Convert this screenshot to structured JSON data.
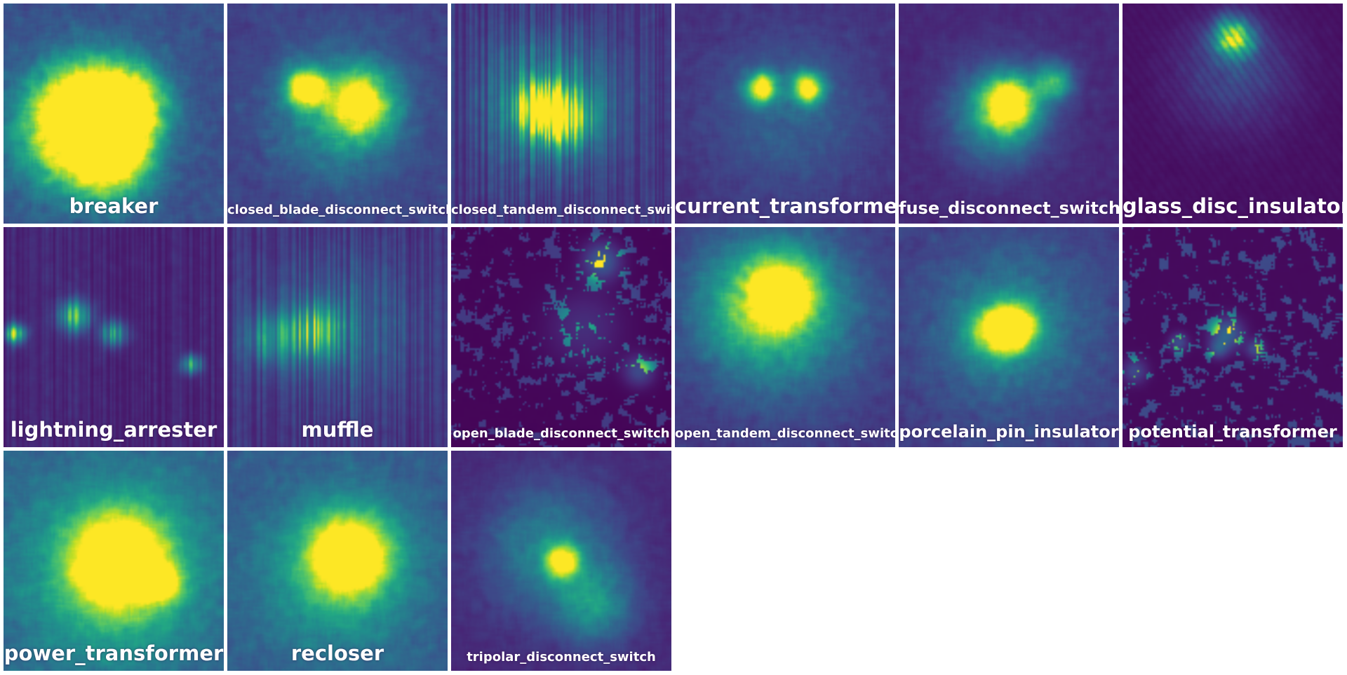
{
  "tiles": [
    {
      "label": "breaker",
      "size": "large",
      "style": "blob",
      "blobs": [
        [
          0.38,
          0.5,
          0.16,
          1.0
        ],
        [
          0.55,
          0.47,
          0.12,
          0.85
        ],
        [
          0.5,
          0.72,
          0.12,
          0.6
        ],
        [
          0.3,
          0.6,
          0.18,
          0.5
        ]
      ],
      "base": 0.25
    },
    {
      "label": "closed_blade_disconnect_switch",
      "size": "small",
      "style": "blob",
      "blobs": [
        [
          0.35,
          0.38,
          0.06,
          0.9
        ],
        [
          0.6,
          0.45,
          0.1,
          0.75
        ],
        [
          0.5,
          0.5,
          0.2,
          0.35
        ]
      ],
      "base": 0.2
    },
    {
      "label": "closed_tandem_disconnect_switch",
      "size": "small",
      "style": "vertical",
      "blobs": [
        [
          0.4,
          0.47,
          0.07,
          0.85
        ],
        [
          0.5,
          0.52,
          0.08,
          0.75
        ],
        [
          0.45,
          0.45,
          0.2,
          0.4
        ]
      ],
      "base": 0.18
    },
    {
      "label": "current_transformer",
      "size": "large",
      "style": "blob",
      "blobs": [
        [
          0.39,
          0.38,
          0.05,
          0.85
        ],
        [
          0.6,
          0.38,
          0.05,
          0.85
        ],
        [
          0.5,
          0.5,
          0.25,
          0.18
        ]
      ],
      "base": 0.14
    },
    {
      "label": "fuse_disconnect_switch",
      "size": "medium",
      "style": "blob",
      "blobs": [
        [
          0.5,
          0.45,
          0.08,
          0.85
        ],
        [
          0.45,
          0.5,
          0.15,
          0.45
        ],
        [
          0.7,
          0.35,
          0.06,
          0.5
        ]
      ],
      "base": 0.12
    },
    {
      "label": "glass_disc_insulator",
      "size": "large",
      "style": "streak",
      "blobs": [
        [
          0.5,
          0.15,
          0.06,
          0.85
        ],
        [
          0.5,
          0.3,
          0.18,
          0.2
        ]
      ],
      "base": 0.05
    },
    {
      "label": "lightning_arrester",
      "size": "large",
      "style": "vertical",
      "blobs": [
        [
          0.05,
          0.48,
          0.03,
          0.8
        ],
        [
          0.32,
          0.4,
          0.05,
          0.6
        ],
        [
          0.5,
          0.48,
          0.04,
          0.55
        ],
        [
          0.85,
          0.62,
          0.03,
          0.6
        ]
      ],
      "base": 0.12
    },
    {
      "label": "muffle",
      "size": "large",
      "style": "vertical",
      "blobs": [
        [
          0.4,
          0.47,
          0.08,
          0.55
        ],
        [
          0.2,
          0.5,
          0.08,
          0.35
        ],
        [
          0.5,
          0.45,
          0.25,
          0.2
        ]
      ],
      "base": 0.15
    },
    {
      "label": "open_blade_disconnect_switch",
      "size": "small",
      "style": "scatter",
      "blobs": [
        [
          0.68,
          0.15,
          0.06,
          0.8
        ],
        [
          0.85,
          0.65,
          0.05,
          0.6
        ],
        [
          0.6,
          0.45,
          0.12,
          0.35
        ]
      ],
      "base": 0.04
    },
    {
      "label": "open_tandem_disconnect_switch",
      "size": "small",
      "style": "blob",
      "blobs": [
        [
          0.48,
          0.3,
          0.1,
          0.8
        ],
        [
          0.4,
          0.35,
          0.2,
          0.45
        ],
        [
          0.5,
          0.4,
          0.3,
          0.25
        ]
      ],
      "base": 0.15
    },
    {
      "label": "porcelain_pin_insulator",
      "size": "medium",
      "style": "blob",
      "blobs": [
        [
          0.52,
          0.45,
          0.07,
          0.95
        ],
        [
          0.42,
          0.47,
          0.08,
          0.55
        ],
        [
          0.5,
          0.45,
          0.25,
          0.28
        ]
      ],
      "base": 0.18
    },
    {
      "label": "potential_transformer",
      "size": "medium",
      "style": "scatter",
      "blobs": [
        [
          0.47,
          0.48,
          0.05,
          0.85
        ],
        [
          0.25,
          0.52,
          0.03,
          0.6
        ],
        [
          0.43,
          0.55,
          0.03,
          0.6
        ],
        [
          0.6,
          0.55,
          0.03,
          0.6
        ],
        [
          0.05,
          0.65,
          0.04,
          0.55
        ]
      ],
      "base": 0.08
    },
    {
      "label": "power_transformer",
      "size": "large",
      "style": "smooth",
      "blobs": [
        [
          0.52,
          0.5,
          0.14,
          1.0
        ],
        [
          0.72,
          0.6,
          0.06,
          0.55
        ],
        [
          0.5,
          0.55,
          0.3,
          0.4
        ]
      ],
      "base": 0.3
    },
    {
      "label": "recloser",
      "size": "large",
      "style": "smooth",
      "blobs": [
        [
          0.55,
          0.47,
          0.12,
          1.0
        ],
        [
          0.5,
          0.55,
          0.25,
          0.35
        ]
      ],
      "base": 0.28
    },
    {
      "label": "tripolar_disconnect_switch",
      "size": "small",
      "style": "blob",
      "blobs": [
        [
          0.5,
          0.5,
          0.05,
          0.85
        ],
        [
          0.45,
          0.45,
          0.2,
          0.35
        ],
        [
          0.65,
          0.7,
          0.12,
          0.35
        ]
      ],
      "base": 0.12
    }
  ]
}
